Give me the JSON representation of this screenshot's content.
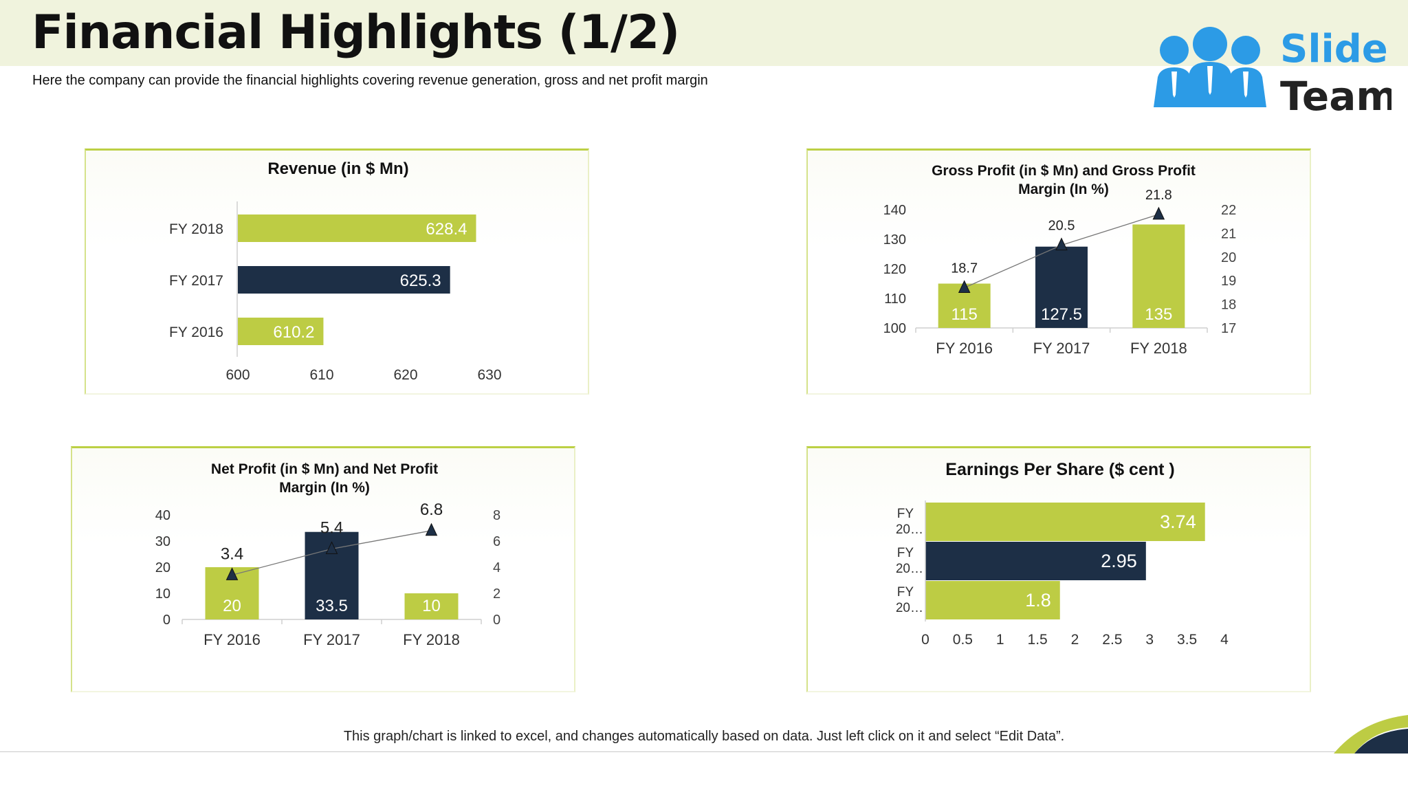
{
  "page": {
    "title": "Financial Highlights (1/2)",
    "subtitle": "Here the company can provide the financial highlights covering revenue generation, gross and net profit margin",
    "footer_note": "This graph/chart is linked to excel, and changes automatically based on data. Just left click on it and select “Edit Data”.",
    "logo_text": [
      "Slide",
      "Team"
    ]
  },
  "colors": {
    "green": "#bdcc44",
    "navy": "#1d2f46",
    "logo_blue": "#2c9be6",
    "logo_dark": "#222222",
    "header_band": "#f0f3dd"
  },
  "chart_data": [
    {
      "id": "revenue",
      "type": "bar",
      "orientation": "horizontal",
      "title": "Revenue (in $ Mn)",
      "categories": [
        "FY 2018",
        "FY 2017",
        "FY 2016"
      ],
      "values": [
        628.4,
        625.3,
        610.2
      ],
      "value_labels": [
        "628.4",
        "625.3",
        "610.2"
      ],
      "bar_colors": [
        "#bdcc44",
        "#1d2f46",
        "#bdcc44"
      ],
      "xlim": [
        600,
        630
      ],
      "ticks": [
        600,
        610,
        620,
        630
      ],
      "grid": false,
      "legend": "none"
    },
    {
      "id": "gross",
      "type": "bar",
      "title": "Gross Profit (in $ Mn) and Gross Profit Margin (In %)",
      "title_lines": [
        "Gross Profit (in $ Mn) and Gross Profit",
        "Margin (In %)"
      ],
      "categories": [
        "FY 2016",
        "FY 2017",
        "FY 2018"
      ],
      "series": [
        {
          "values": [
            115,
            127.5,
            135
          ],
          "labels": [
            "115",
            "127.5",
            "135"
          ],
          "type": "bar",
          "axis": "left",
          "bar_colors": [
            "#bdcc44",
            "#1d2f46",
            "#bdcc44"
          ]
        },
        {
          "values": [
            18.7,
            20.5,
            21.8
          ],
          "labels": [
            "18.7",
            "20.5",
            "21.8"
          ],
          "type": "line",
          "marker": "triangle",
          "axis": "right"
        }
      ],
      "ylim": [
        100,
        140
      ],
      "yticks": [
        100,
        110,
        120,
        130,
        140
      ],
      "y2lim": [
        17,
        22
      ],
      "y2ticks": [
        17,
        18,
        19,
        20,
        21,
        22
      ],
      "grid": false,
      "legend": "none"
    },
    {
      "id": "net",
      "type": "bar",
      "title": "Net Profit (in $ Mn) and Net Profit Margin (In %)",
      "title_lines": [
        "Net Profit (in $ Mn) and Net Profit",
        "Margin (In %)"
      ],
      "categories": [
        "FY 2016",
        "FY 2017",
        "FY 2018"
      ],
      "series": [
        {
          "values": [
            20,
            33.5,
            10
          ],
          "labels": [
            "20",
            "33.5",
            "10"
          ],
          "type": "bar",
          "axis": "left",
          "bar_colors": [
            "#bdcc44",
            "#1d2f46",
            "#bdcc44"
          ]
        },
        {
          "values": [
            3.4,
            5.4,
            6.8
          ],
          "labels": [
            "3.4",
            "5.4",
            "6.8"
          ],
          "type": "line",
          "marker": "triangle",
          "axis": "right"
        }
      ],
      "ylim": [
        0,
        40
      ],
      "yticks": [
        0,
        10,
        20,
        30,
        40
      ],
      "y2lim": [
        0,
        8
      ],
      "y2ticks": [
        0,
        2,
        4,
        6,
        8
      ],
      "grid": false,
      "legend": "none"
    },
    {
      "id": "eps",
      "type": "bar",
      "orientation": "horizontal",
      "title": "Earnings Per Share ($ cent )",
      "category_labels": [
        [
          "FY",
          "20…"
        ],
        [
          "FY",
          "20…"
        ],
        [
          "FY",
          "20…"
        ]
      ],
      "values": [
        3.74,
        2.95,
        1.8
      ],
      "value_labels": [
        "3.74",
        "2.95",
        "1.8"
      ],
      "bar_colors": [
        "#bdcc44",
        "#1d2f46",
        "#bdcc44"
      ],
      "xlim": [
        0,
        4
      ],
      "ticks": [
        "0",
        "0.5",
        "1",
        "1.5",
        "2",
        "2.5",
        "3",
        "3.5",
        "4"
      ],
      "grid": false,
      "legend": "none"
    }
  ]
}
